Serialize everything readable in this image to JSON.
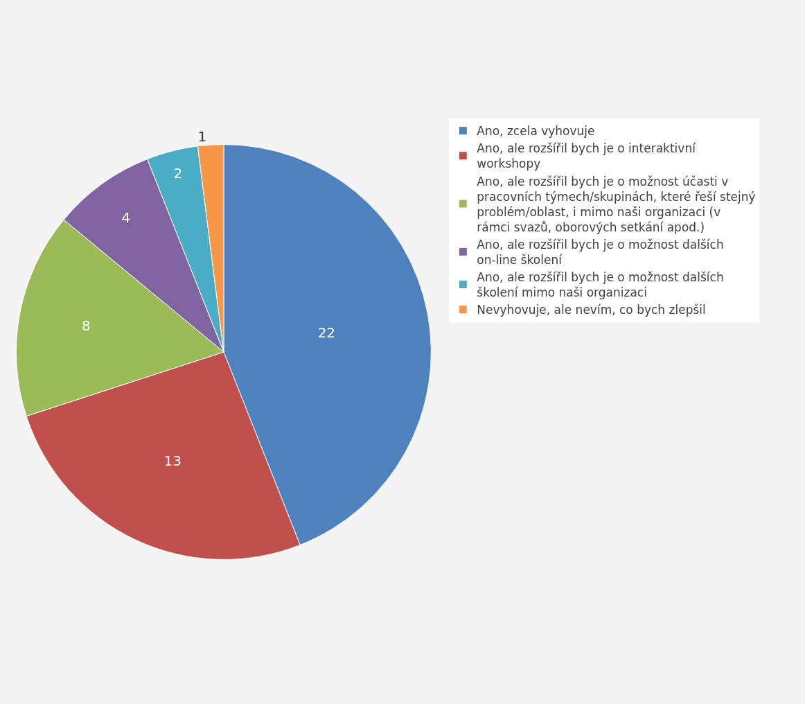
{
  "chart_data": {
    "type": "pie",
    "categories": [
      "Ano, zcela vyhovuje",
      "Ano, ale rozšířil bych je o interaktivní workshopy",
      "Ano, ale rozšířil bych je o možnost účasti v pracovních týmech/skupinách, které řeší stejný problém/oblast, i mimo naši organizaci (v rámci svazů, oborových setkání apod.)",
      "Ano, ale rozšířil bych je o možnost dalších on-line školení",
      "Ano, ale rozšířil bych je o možnost dalších školení mimo naši organizaci",
      "Nevyhovuje, ale nevím, co bych zlepšil"
    ],
    "values": [
      22,
      13,
      8,
      4,
      2,
      1
    ],
    "colors": [
      "#4f81bd",
      "#c0504d",
      "#9bbb59",
      "#8064a2",
      "#4bacc6",
      "#f79646"
    ],
    "data_labels": true,
    "legend": "right"
  }
}
